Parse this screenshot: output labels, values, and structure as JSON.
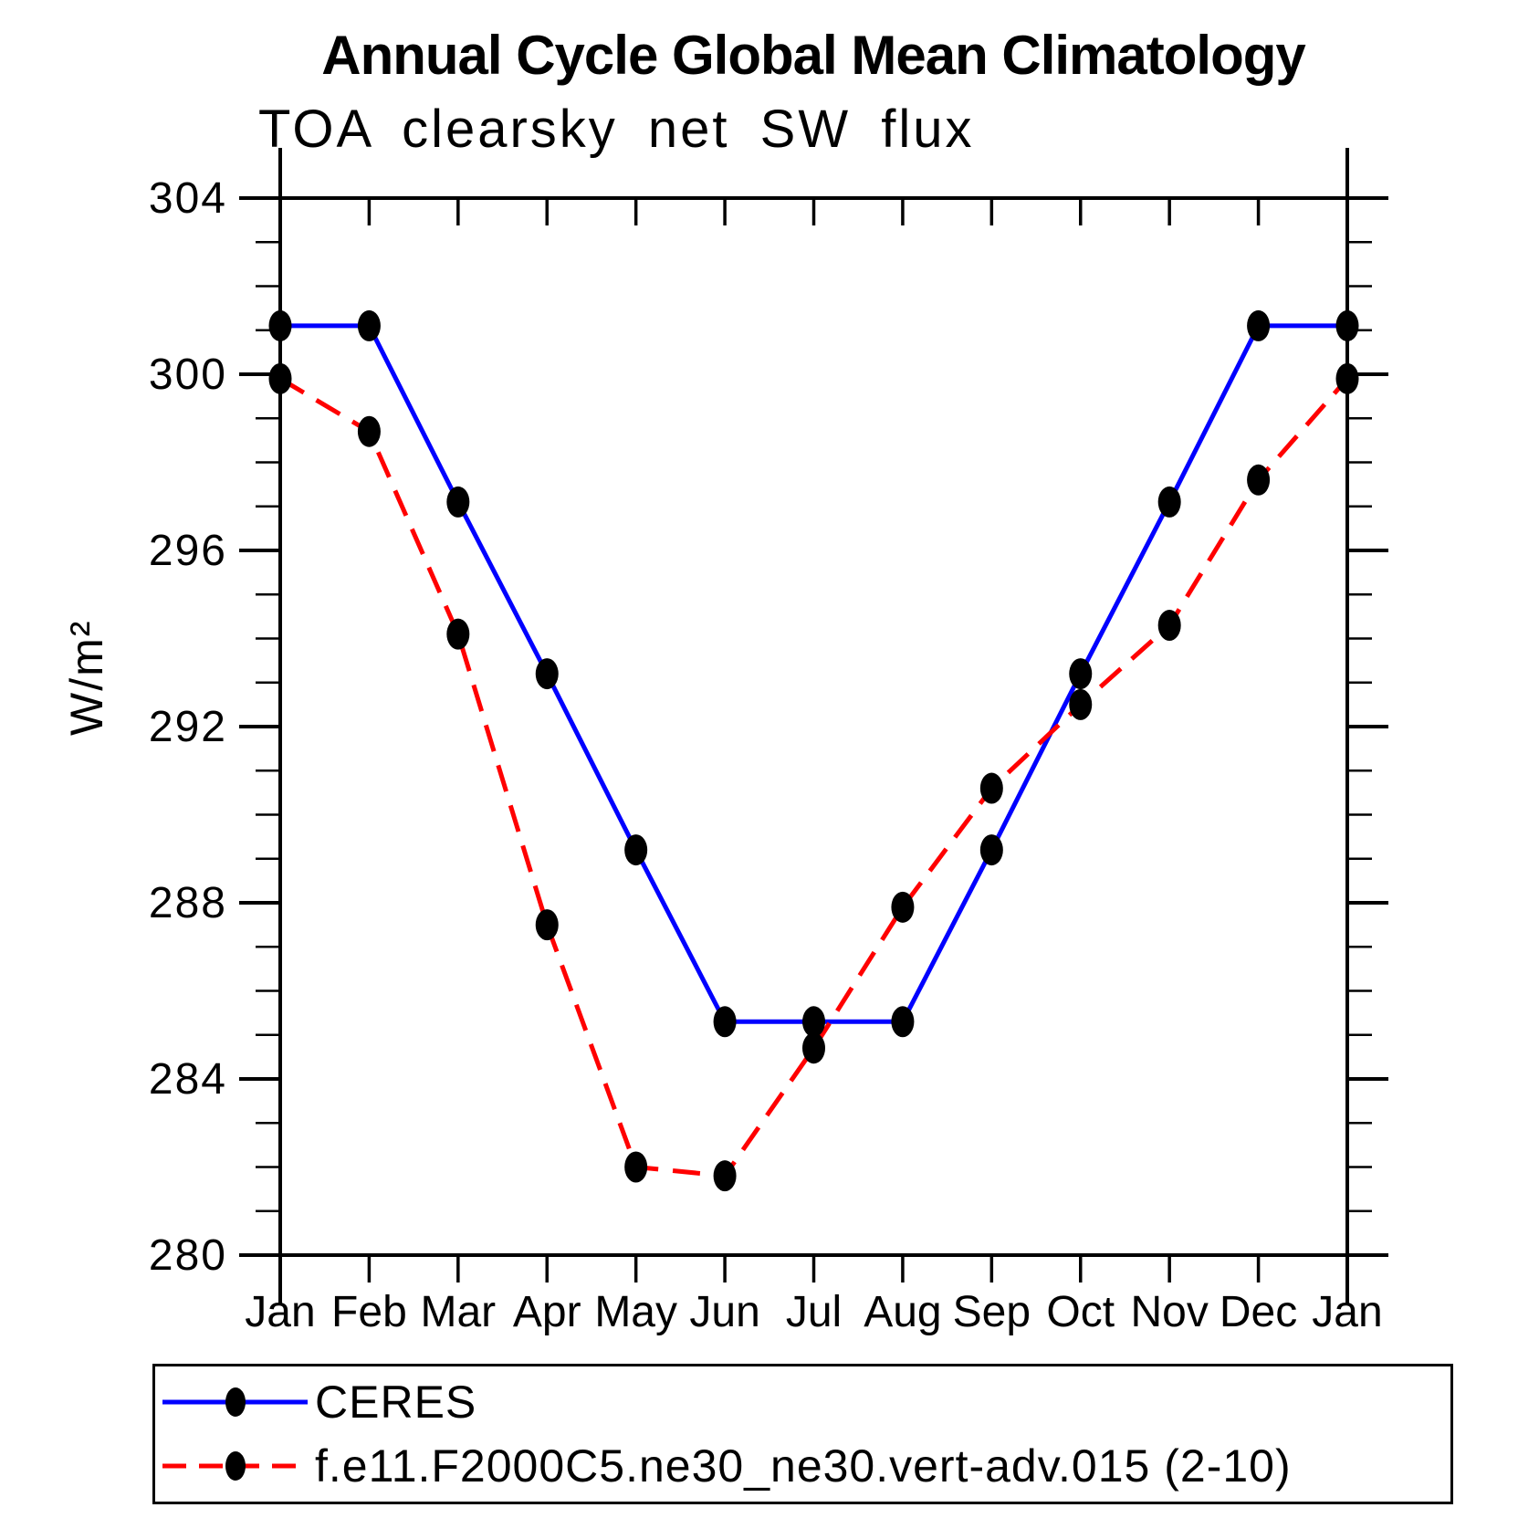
{
  "title": "Annual Cycle Global Mean Climatology",
  "subtitle": "TOA clearsky net SW flux",
  "chart_data": {
    "type": "line",
    "categories": [
      "Jan",
      "Feb",
      "Mar",
      "Apr",
      "May",
      "Jun",
      "Jul",
      "Aug",
      "Sep",
      "Oct",
      "Nov",
      "Dec",
      "Jan"
    ],
    "series": [
      {
        "name": "CERES",
        "color": "#0000ff",
        "line_style": "solid",
        "marker": "filled-ellipse",
        "marker_color": "#000000",
        "values": [
          301.1,
          301.1,
          297.1,
          293.2,
          289.2,
          285.3,
          285.3,
          285.3,
          289.2,
          293.2,
          297.1,
          301.1,
          301.1
        ]
      },
      {
        "name": "f.e11.F2000C5.ne30_ne30.vert-adv.015 (2-10)",
        "color": "#ff0000",
        "line_style": "dashed",
        "marker": "filled-ellipse",
        "marker_color": "#000000",
        "values": [
          299.9,
          298.7,
          294.1,
          287.5,
          282.0,
          281.8,
          284.7,
          287.9,
          290.6,
          292.5,
          294.3,
          297.6,
          299.9
        ]
      }
    ],
    "xlabel": "",
    "ylabel": "W/m²",
    "ylim": [
      280,
      304
    ],
    "yticks": [
      280,
      284,
      288,
      292,
      296,
      300,
      304
    ],
    "minor_tick_interval": 1,
    "grid": false,
    "legend_position": "bottom-box",
    "axis_color": "#000000"
  }
}
